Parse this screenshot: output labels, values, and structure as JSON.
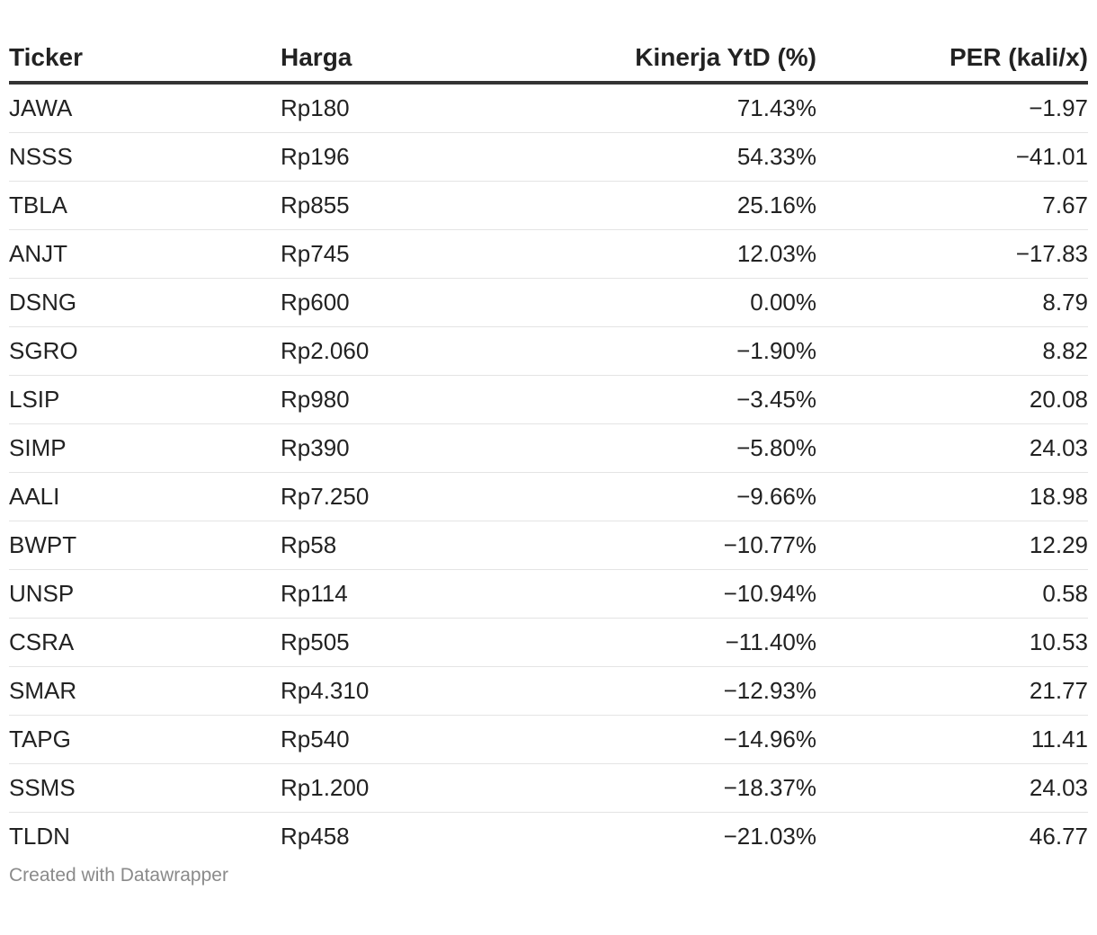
{
  "chart_data": {
    "type": "table",
    "columns": [
      "Ticker",
      "Harga",
      "Kinerja YtD (%)",
      "PER (kali/x)"
    ],
    "rows": [
      {
        "ticker": "JAWA",
        "harga": "Rp180",
        "kinerja": "71.43%",
        "per": "−1.97"
      },
      {
        "ticker": "NSSS",
        "harga": "Rp196",
        "kinerja": "54.33%",
        "per": "−41.01"
      },
      {
        "ticker": "TBLA",
        "harga": "Rp855",
        "kinerja": "25.16%",
        "per": "7.67"
      },
      {
        "ticker": "ANJT",
        "harga": "Rp745",
        "kinerja": "12.03%",
        "per": "−17.83"
      },
      {
        "ticker": "DSNG",
        "harga": "Rp600",
        "kinerja": "0.00%",
        "per": "8.79"
      },
      {
        "ticker": "SGRO",
        "harga": "Rp2.060",
        "kinerja": "−1.90%",
        "per": "8.82"
      },
      {
        "ticker": "LSIP",
        "harga": "Rp980",
        "kinerja": "−3.45%",
        "per": "20.08"
      },
      {
        "ticker": "SIMP",
        "harga": "Rp390",
        "kinerja": "−5.80%",
        "per": "24.03"
      },
      {
        "ticker": "AALI",
        "harga": "Rp7.250",
        "kinerja": "−9.66%",
        "per": "18.98"
      },
      {
        "ticker": "BWPT",
        "harga": "Rp58",
        "kinerja": "−10.77%",
        "per": "12.29"
      },
      {
        "ticker": "UNSP",
        "harga": "Rp114",
        "kinerja": "−10.94%",
        "per": "0.58"
      },
      {
        "ticker": "CSRA",
        "harga": "Rp505",
        "kinerja": "−11.40%",
        "per": "10.53"
      },
      {
        "ticker": "SMAR",
        "harga": "Rp4.310",
        "kinerja": "−12.93%",
        "per": "21.77"
      },
      {
        "ticker": "TAPG",
        "harga": "Rp540",
        "kinerja": "−14.96%",
        "per": "11.41"
      },
      {
        "ticker": "SSMS",
        "harga": "Rp1.200",
        "kinerja": "−18.37%",
        "per": "24.03"
      },
      {
        "ticker": "TLDN",
        "harga": "Rp458",
        "kinerja": "−21.03%",
        "per": "46.77"
      }
    ]
  },
  "footer": {
    "credit": "Created with Datawrapper"
  }
}
